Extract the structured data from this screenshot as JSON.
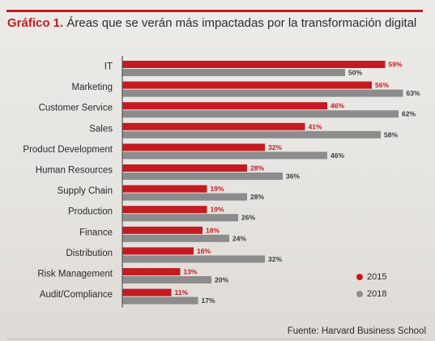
{
  "title": {
    "label": "Gráfico 1.",
    "text": "Áreas que se verán más impactadas por la transformación digital"
  },
  "chart_data": {
    "type": "bar",
    "orientation": "horizontal",
    "categories": [
      "IT",
      "Marketing",
      "Customer Service",
      "Sales",
      "Product Development",
      "Human Resources",
      "Supply Chain",
      "Production",
      "Finance",
      "Distribution",
      "Risk Management",
      "Audit/Compliance"
    ],
    "series": [
      {
        "name": "2015",
        "color": "#c41a22",
        "values": [
          59,
          56,
          46,
          41,
          32,
          28,
          19,
          19,
          18,
          16,
          13,
          11
        ]
      },
      {
        "name": "2018",
        "color": "#8c8c8c",
        "values": [
          50,
          63,
          62,
          58,
          46,
          36,
          28,
          26,
          24,
          32,
          20,
          17
        ]
      }
    ],
    "value_suffix": "%",
    "xlim": [
      0,
      70
    ],
    "grid": false,
    "legend_position": "bottom-right"
  },
  "legend": [
    {
      "label": "2015",
      "color": "#c41a22"
    },
    {
      "label": "2018",
      "color": "#8c8c8c"
    }
  ],
  "source": "Fuente: Harvard Business School"
}
